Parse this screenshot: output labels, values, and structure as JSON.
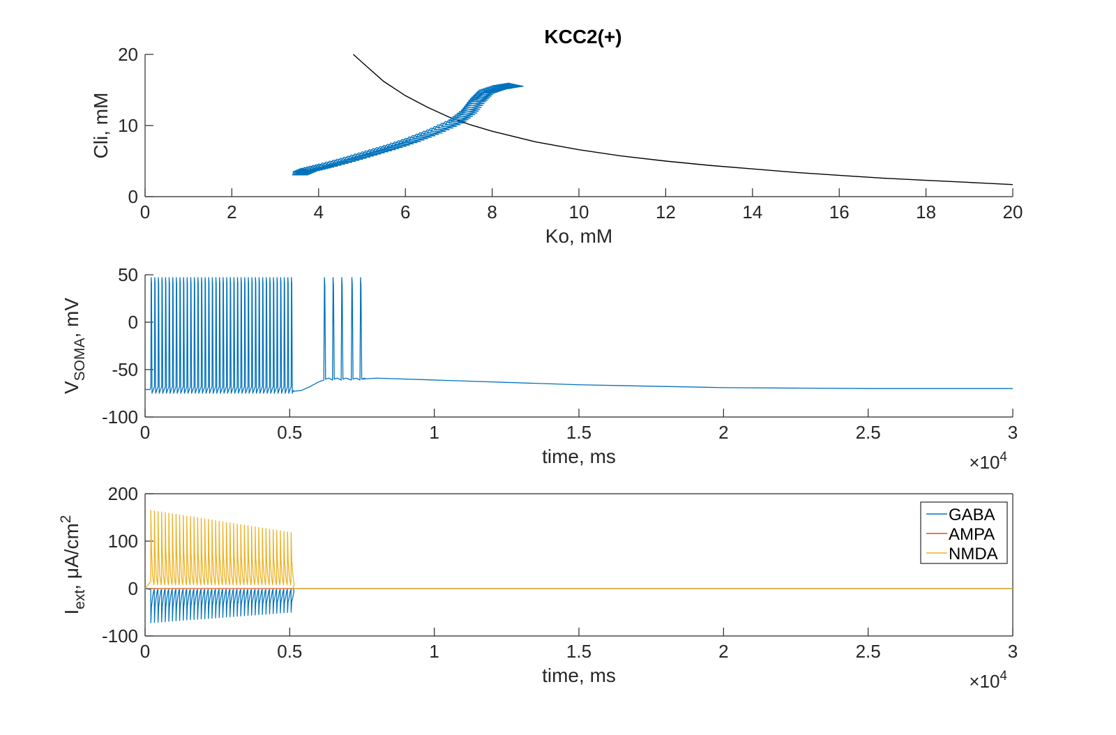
{
  "figure_title": "KCC2(+)",
  "colors": {
    "gaba": "#0072BD",
    "ampa": "#D95319",
    "nmda": "#EDB120",
    "curve": "#000000",
    "axis": "#262626"
  },
  "chart_data": [
    {
      "type": "line",
      "title": "KCC2(+)",
      "xlabel": "Ko, mM",
      "ylabel": "Cli, mM",
      "xlim": [
        0,
        20
      ],
      "ylim": [
        0,
        20
      ],
      "xticks": [
        "0",
        "2",
        "4",
        "6",
        "8",
        "10",
        "12",
        "14",
        "16",
        "18",
        "20"
      ],
      "yticks": [
        "0",
        "10",
        "20"
      ],
      "grid": false,
      "series": [
        {
          "color": "#000000",
          "x": [
            4.8,
            5.0,
            5.5,
            6.0,
            6.5,
            7.0,
            7.5,
            8.0,
            9.0,
            10.0,
            11.0,
            12.0,
            13.0,
            14.0,
            15.0,
            16.0,
            17.0,
            18.0,
            19.0,
            20.0
          ],
          "y": [
            20.0,
            18.9,
            16.2,
            14.2,
            12.6,
            11.2,
            10.1,
            9.2,
            7.7,
            6.6,
            5.7,
            5.0,
            4.4,
            3.9,
            3.4,
            3.0,
            2.6,
            2.3,
            2.0,
            1.7
          ]
        },
        {
          "color": "#0072BD",
          "x": [
            3.4,
            3.6,
            4.0,
            4.5,
            5.0,
            5.5,
            6.0,
            6.5,
            7.0,
            7.3,
            7.5,
            7.7,
            8.0,
            8.2,
            8.4
          ],
          "y": [
            3.5,
            4.0,
            4.6,
            5.4,
            6.3,
            7.2,
            8.2,
            9.4,
            10.8,
            12.2,
            13.8,
            15.0,
            15.6,
            15.8,
            16.0
          ]
        }
      ]
    },
    {
      "type": "line",
      "xlabel": "time, ms",
      "ylabel": "V_SOMA, mV",
      "xlim": [
        0,
        30000
      ],
      "ylim": [
        -100,
        50
      ],
      "x_exponent": "×10^4",
      "xticks": [
        "0",
        "0.5",
        "1",
        "1.5",
        "2",
        "2.5",
        "3"
      ],
      "yticks": [
        "-100",
        "-50",
        "0",
        "50"
      ],
      "grid": false,
      "series": [
        {
          "color": "#0072BD",
          "burst1": {
            "start_ms": 200,
            "end_ms": 5050,
            "spike_count": 40,
            "peak_mV": 47,
            "trough_mV": -75
          },
          "burst2": {
            "spike_times_ms": [
              6200,
              6500,
              6800,
              7150,
              7450
            ],
            "peak_mV": 47,
            "trough_mV": -60
          },
          "baseline_points": {
            "t": [
              0,
              5100,
              5600,
              6000,
              7500,
              8000,
              10000,
              15000,
              20000,
              25000,
              30000
            ],
            "v": [
              -71,
              -73,
              -70,
              -63,
              -60,
              -59,
              -61,
              -66,
              -69,
              -70,
              -70
            ]
          }
        }
      ]
    },
    {
      "type": "line",
      "xlabel": "time, ms",
      "ylabel": "I_ext, μA/cm^2",
      "xlim": [
        0,
        30000
      ],
      "ylim": [
        -100,
        200
      ],
      "x_exponent": "×10^4",
      "xticks": [
        "0",
        "0.5",
        "1",
        "1.5",
        "2",
        "2.5",
        "3"
      ],
      "yticks": [
        "-100",
        "0",
        "100",
        "200"
      ],
      "legend": {
        "position": "top-right",
        "entries": [
          "GABA",
          "AMPA",
          "NMDA"
        ]
      },
      "grid": false,
      "series": [
        {
          "name": "GABA",
          "color": "#0072BD",
          "pulse_start_ms": 200,
          "pulse_end_ms": 5050,
          "pulse_count": 40,
          "min_start": -72,
          "min_end": -50
        },
        {
          "name": "AMPA",
          "color": "#D95319",
          "value": 0
        },
        {
          "name": "NMDA",
          "color": "#EDB120",
          "pulse_start_ms": 200,
          "pulse_end_ms": 5050,
          "pulse_count": 40,
          "peak_start": 165,
          "peak_end": 118
        }
      ]
    }
  ]
}
